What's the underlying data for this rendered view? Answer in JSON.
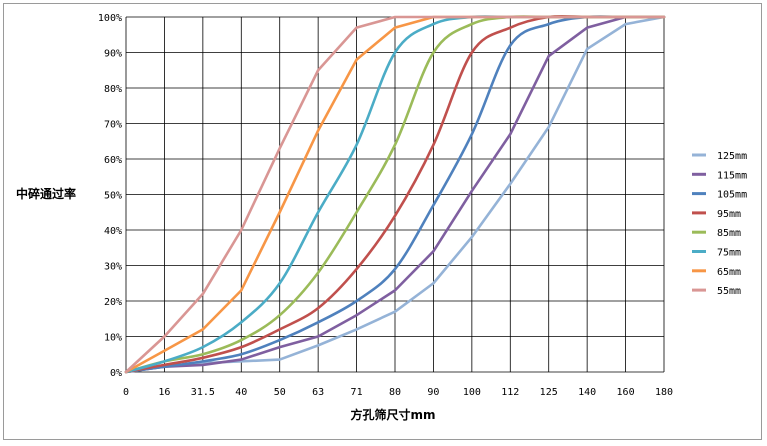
{
  "chart_data": {
    "type": "line",
    "title": "",
    "xlabel": "方孔筛尺寸mm",
    "ylabel": "中碎通过率",
    "categories": [
      "0",
      "16",
      "31.5",
      "40",
      "50",
      "63",
      "71",
      "80",
      "90",
      "100",
      "112",
      "125",
      "140",
      "160",
      "180"
    ],
    "ylim": [
      0,
      100
    ],
    "yticks": [
      "0%",
      "10%",
      "20%",
      "30%",
      "40%",
      "50%",
      "60%",
      "70%",
      "80%",
      "90%",
      "100%"
    ],
    "grid": "vertical and horizontal",
    "legend_position": "right",
    "series": [
      {
        "name": "125mm",
        "color": "#95b3d7",
        "smooth": false,
        "values": [
          0,
          1.5,
          2.5,
          3,
          3.5,
          7.5,
          12,
          17,
          25,
          38,
          53,
          69,
          91,
          98,
          100
        ]
      },
      {
        "name": "115mm",
        "color": "#7f5fa0",
        "smooth": false,
        "values": [
          0,
          1.5,
          2,
          3.5,
          7,
          10,
          16,
          23,
          34,
          51,
          67,
          89,
          97,
          100,
          100
        ]
      },
      {
        "name": "105mm",
        "color": "#4f81bd",
        "smooth": true,
        "values": [
          0,
          1.5,
          3,
          5,
          9,
          14,
          20,
          29,
          47,
          67,
          92,
          98,
          100,
          100,
          100
        ]
      },
      {
        "name": "95mm",
        "color": "#c0504d",
        "smooth": true,
        "values": [
          0,
          2,
          4,
          7,
          12,
          18,
          29,
          44,
          64,
          90,
          97,
          100,
          100,
          100,
          100
        ]
      },
      {
        "name": "85mm",
        "color": "#9bbb59",
        "smooth": true,
        "values": [
          0,
          3,
          5,
          9,
          16,
          28,
          45,
          64,
          90,
          98,
          100,
          100,
          100,
          100,
          100
        ]
      },
      {
        "name": "75mm",
        "color": "#4bacc6",
        "smooth": true,
        "values": [
          0,
          3,
          7,
          14,
          25,
          45,
          64,
          90,
          98,
          100,
          100,
          100,
          100,
          100,
          100
        ]
      },
      {
        "name": "65mm",
        "color": "#f79646",
        "smooth": false,
        "values": [
          0,
          6,
          12,
          23,
          45,
          68,
          88,
          97,
          100,
          100,
          100,
          100,
          100,
          100,
          100
        ]
      },
      {
        "name": "55mm",
        "color": "#d99694",
        "smooth": false,
        "values": [
          0,
          10,
          22,
          40,
          63,
          85,
          97,
          100,
          100,
          100,
          100,
          100,
          100,
          100,
          100
        ]
      }
    ]
  }
}
